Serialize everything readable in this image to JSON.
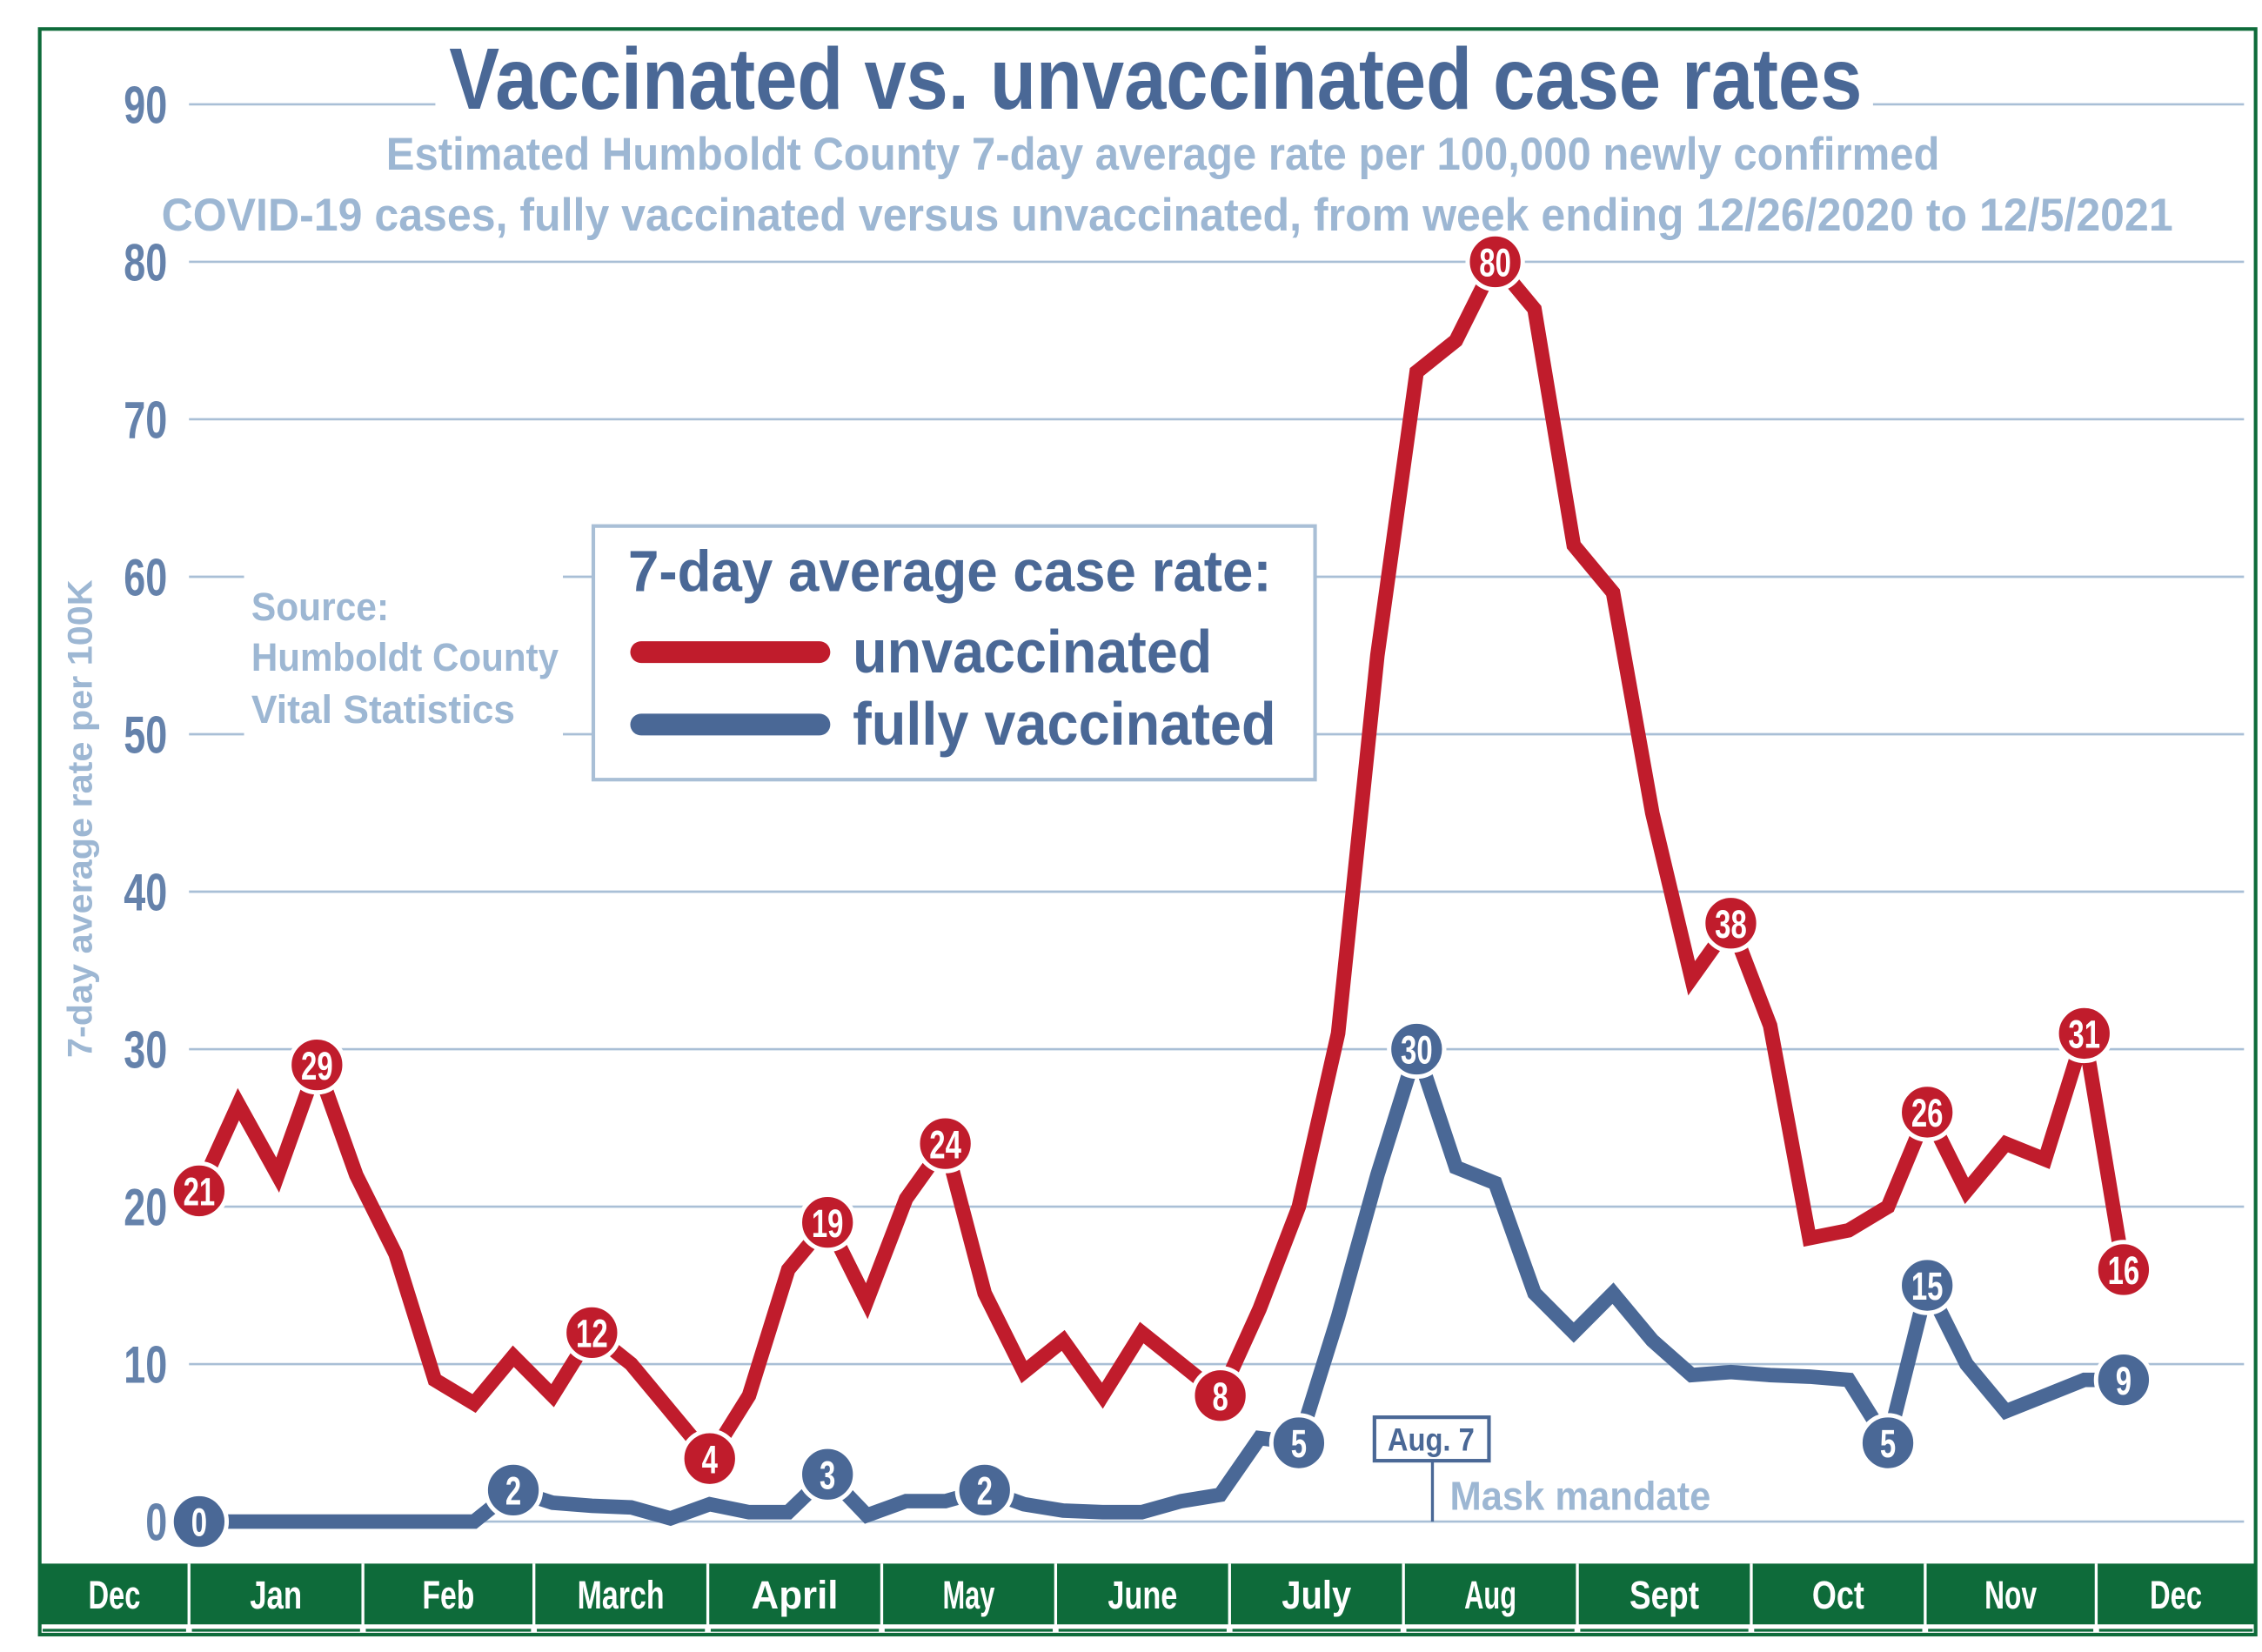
{
  "chart_data": {
    "type": "line",
    "title": "Vaccinated vs. unvaccinated case rates",
    "subtitle_line1": "Estimated Humboldt County 7-day average rate per 100,000 newly confirmed",
    "subtitle_line2": "COVID-19 cases,  fully vaccinated versus unvaccinated, from week ending 12/26/2020 to 12/5/2021",
    "ylabel": "7-day average rate per 100K",
    "xlabel": "",
    "ylim": [
      0,
      90
    ],
    "yticks": [
      0,
      10,
      20,
      30,
      40,
      50,
      60,
      70,
      80,
      90
    ],
    "grid": true,
    "x_tick_labels": [
      "Dec",
      "Jan",
      "Feb",
      "March",
      "April",
      "May",
      "June",
      "July",
      "Aug",
      "Sept",
      "Oct",
      "Nov",
      "Dec"
    ],
    "x_range": [
      "12/26/2020",
      "12/5/2021"
    ],
    "x_interval": "weekly",
    "legend": {
      "title": "7-day average case rate:",
      "placement": "upper-left-center"
    },
    "series": [
      {
        "name": "unvaccinated",
        "color": "#c01c2c",
        "values": [
          21,
          26.5,
          22,
          29,
          22,
          17,
          9,
          7.5,
          10.5,
          8,
          12,
          10,
          7,
          4,
          8,
          16,
          19,
          14,
          20.5,
          24,
          14.5,
          9.5,
          11.5,
          8,
          12,
          10,
          8,
          13.5,
          20,
          31,
          55,
          73,
          75,
          80,
          77,
          62,
          59,
          45,
          34.5,
          38,
          31.5,
          18,
          18.5,
          20,
          26,
          21,
          24,
          23,
          31,
          16
        ],
        "labeled_points": [
          {
            "index": 0,
            "label": "21"
          },
          {
            "index": 3,
            "label": "29"
          },
          {
            "index": 10,
            "label": "12"
          },
          {
            "index": 13,
            "label": "4"
          },
          {
            "index": 16,
            "label": "19"
          },
          {
            "index": 19,
            "label": "24"
          },
          {
            "index": 26,
            "label": "8"
          },
          {
            "index": 33,
            "label": "80"
          },
          {
            "index": 39,
            "label": "38"
          },
          {
            "index": 44,
            "label": "26"
          },
          {
            "index": 48,
            "label": "31"
          },
          {
            "index": 49,
            "label": "16"
          }
        ]
      },
      {
        "name": "fully vaccinated",
        "color": "#4a6896",
        "values": [
          0,
          0,
          0,
          0,
          0,
          0,
          0,
          0,
          2,
          1.2,
          1,
          0.9,
          0.2,
          1.1,
          0.6,
          0.6,
          3,
          0.4,
          1.3,
          1.3,
          2,
          1.1,
          0.7,
          0.6,
          0.6,
          1.3,
          1.7,
          5.3,
          5,
          13,
          22,
          30,
          22.5,
          21.5,
          14.5,
          12,
          14.5,
          11.5,
          9.3,
          9.5,
          9.3,
          9.2,
          9,
          5,
          15,
          10,
          7,
          8,
          9,
          9
        ],
        "labeled_points": [
          {
            "index": 0,
            "label": "0"
          },
          {
            "index": 8,
            "label": "2"
          },
          {
            "index": 16,
            "label": "3"
          },
          {
            "index": 20,
            "label": "2"
          },
          {
            "index": 28,
            "label": "5"
          },
          {
            "index": 31,
            "label": "30"
          },
          {
            "index": 43,
            "label": "5"
          },
          {
            "index": 44,
            "label": "15"
          },
          {
            "index": 49,
            "label": "9"
          }
        ]
      }
    ],
    "annotations": {
      "source_title": "Source:",
      "source_line1": "Humboldt County",
      "source_line2": "Vital Statistics",
      "event_date": "Aug. 7",
      "event_label": "Mask mandate",
      "event_index": 32
    }
  },
  "colors": {
    "title": "#4a6896",
    "subtitle": "#9db7d3",
    "grid": "#a9bfd6",
    "tick": "#6582ab",
    "month_bar": "#0e6b3a",
    "unvaccinated": "#c01c2c",
    "vaccinated": "#4a6896"
  }
}
